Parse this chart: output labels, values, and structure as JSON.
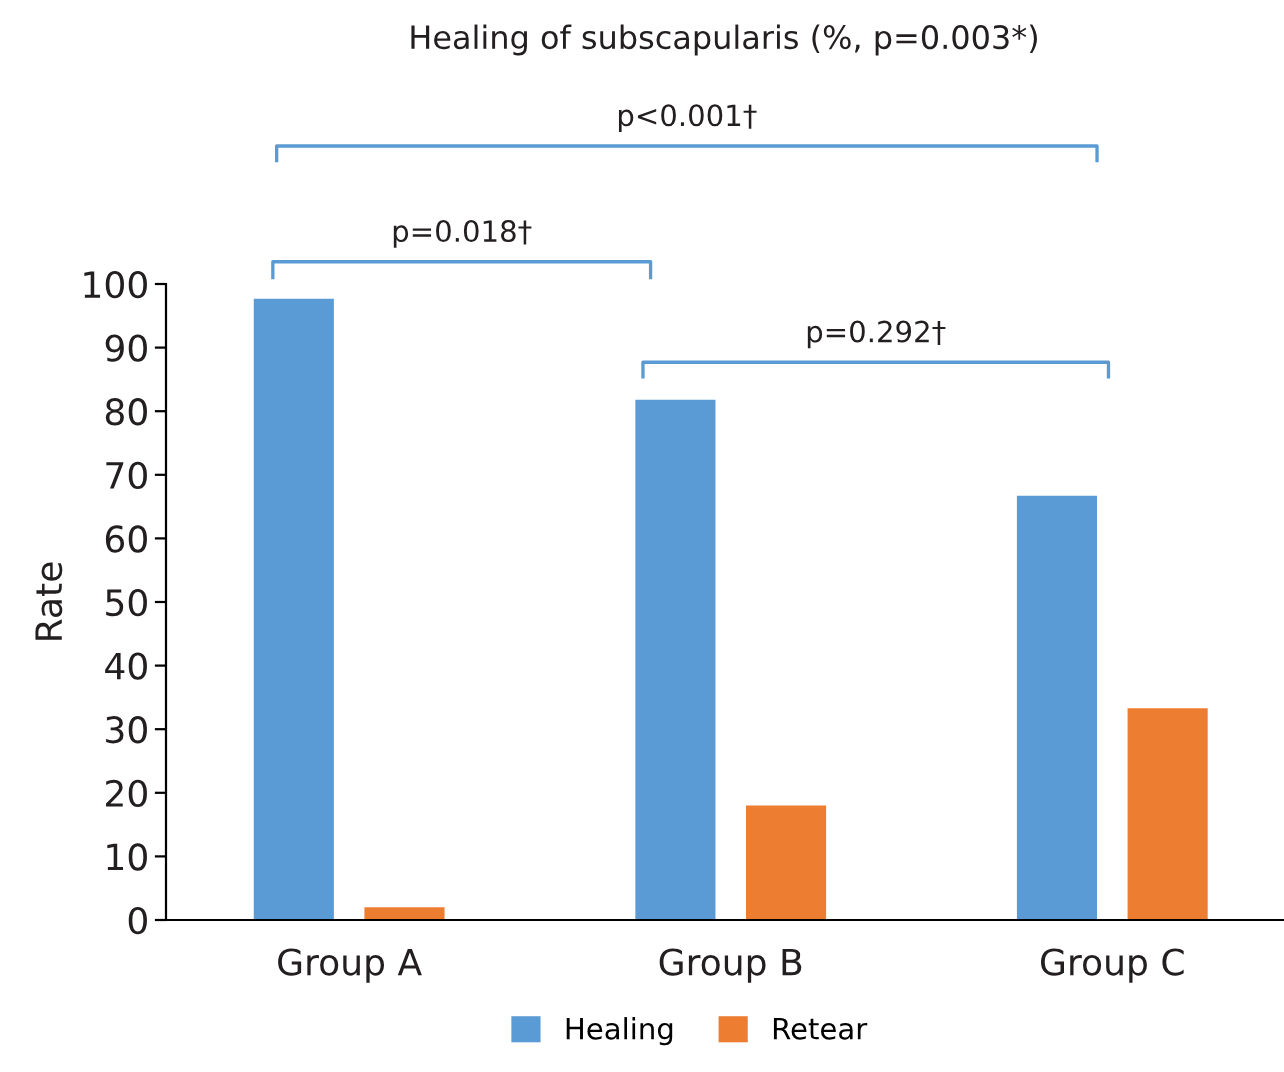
{
  "chart_data": {
    "type": "bar",
    "title": "Healing of subscapularis (%, p=0.003*)",
    "ylabel": "Rate",
    "categories": [
      "Group A",
      "Group B",
      "Group C"
    ],
    "series": [
      {
        "name": "Healing",
        "color": "#5b9bd5",
        "values": [
          97.7,
          81.8,
          66.7
        ]
      },
      {
        "name": "Retear",
        "color": "#ed7d31",
        "values": [
          2.0,
          18.0,
          33.3
        ]
      }
    ],
    "ylim": [
      0,
      100
    ],
    "yticks": [
      0,
      10,
      20,
      30,
      40,
      50,
      60,
      70,
      80,
      90,
      100
    ],
    "annotations": [
      "p<0.001†",
      "p=0.018†",
      "p=0.292†"
    ],
    "grid": false,
    "legend": "bottom"
  }
}
